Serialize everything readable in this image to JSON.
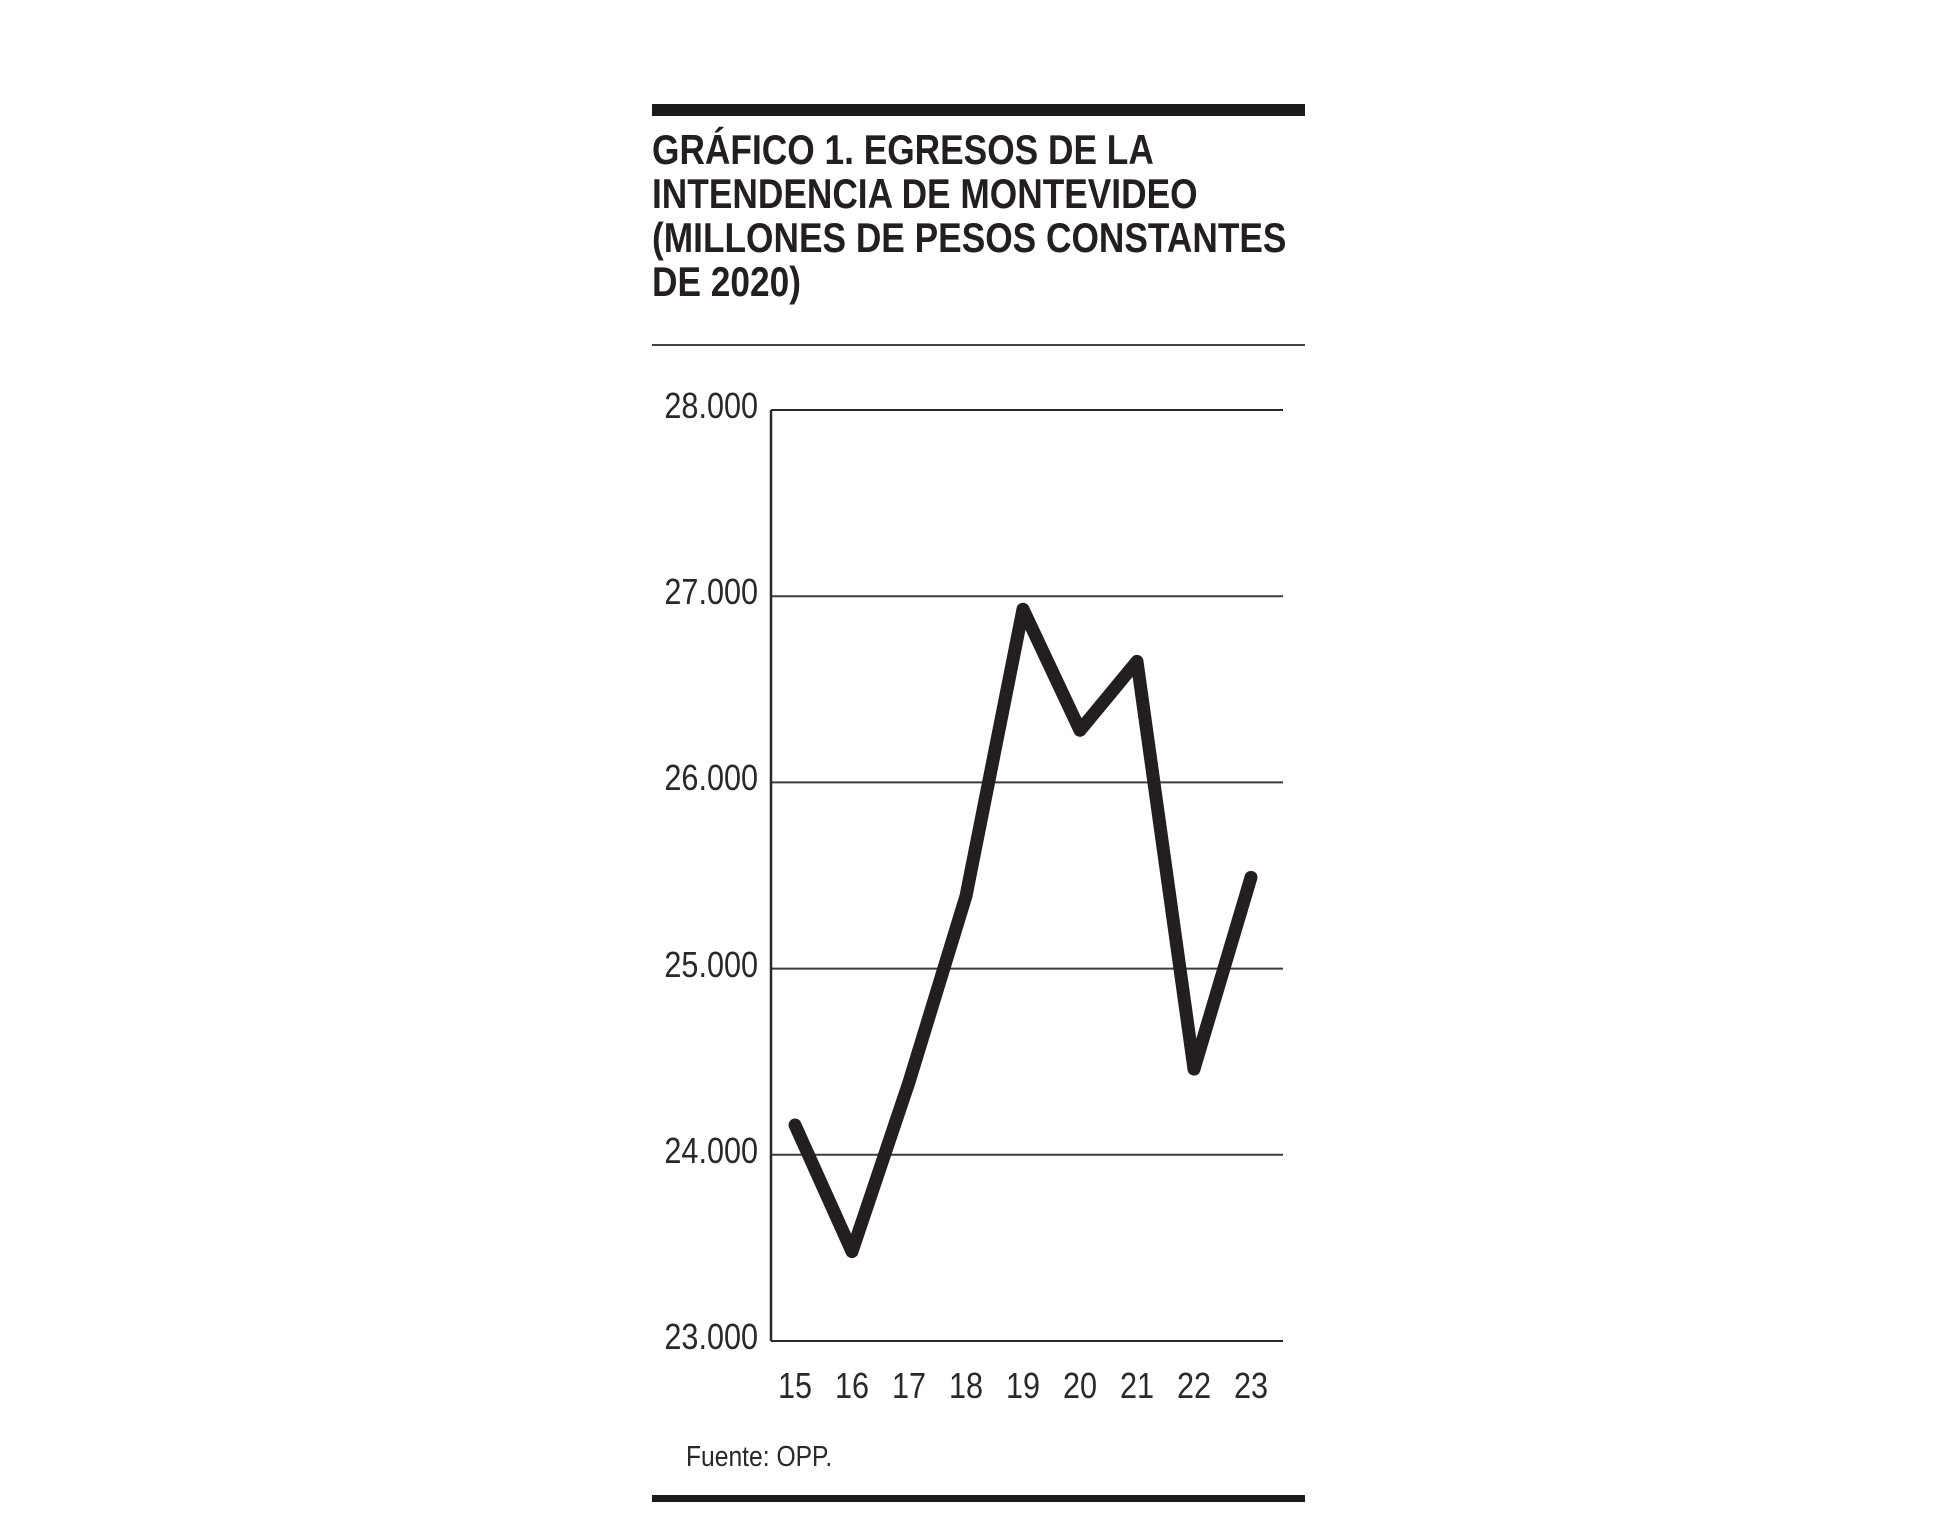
{
  "header": {
    "title_lines": [
      "GRÁFICO 1. EGRESOS DE LA",
      "INTENDENCIA DE MONTEVIDEO",
      "(MILLONES DE PESOS CONSTANTES",
      "DE 2020)"
    ]
  },
  "footer": {
    "source": "Fuente: OPP."
  },
  "colors": {
    "ink": "#231f20",
    "grid": "#3f3b3c",
    "axis": "#2b2829",
    "background": "#ffffff"
  },
  "chart_data": {
    "type": "line",
    "title": "GRÁFICO 1. EGRESOS DE LA INTENDENCIA DE MONTEVIDEO (MILLONES DE PESOS CONSTANTES DE 2020)",
    "series_name": "Egresos de la Intendencia de Montevideo",
    "categories": [
      "15",
      "16",
      "17",
      "18",
      "19",
      "20",
      "21",
      "22",
      "23"
    ],
    "values": [
      24160,
      23480,
      24390,
      25390,
      26930,
      26280,
      26650,
      24460,
      25490
    ],
    "xlabel": "",
    "ylabel": "",
    "ylim": [
      23000,
      28000
    ],
    "yticks": [
      23000,
      24000,
      25000,
      26000,
      27000,
      28000
    ],
    "ytick_labels": [
      "23.000",
      "24.000",
      "25.000",
      "26.000",
      "27.000",
      "28.000"
    ],
    "grid": "horizontal",
    "legend": "none",
    "source": "Fuente: OPP."
  }
}
